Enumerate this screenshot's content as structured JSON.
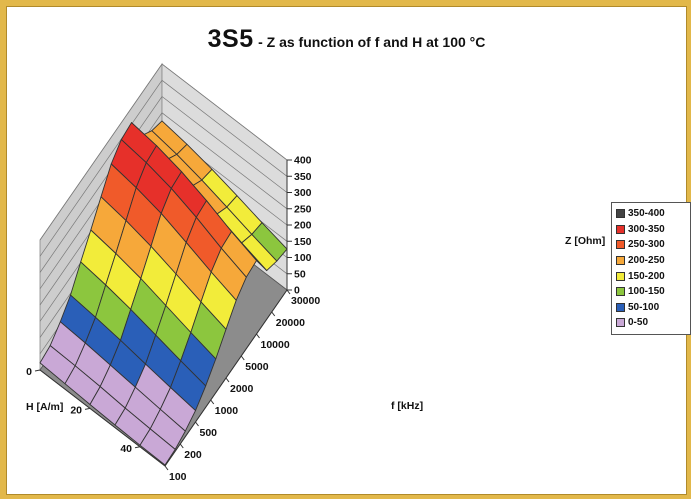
{
  "title": {
    "main": "3S5",
    "sub": "- Z as function of f and H at 100 °C"
  },
  "chart_data": {
    "type": "surface3d",
    "z_label": "Z [Ohm]",
    "x_label": "f [kHz]",
    "y_label": "H [A/m]",
    "z_ticks": [
      "0",
      "50",
      "100",
      "150",
      "200",
      "250",
      "300",
      "350",
      "400"
    ],
    "zlim": [
      0,
      400
    ],
    "f_ticks": [
      "100",
      "200",
      "500",
      "1000",
      "2000",
      "5000",
      "10000",
      "20000",
      "30000"
    ],
    "h_ticks": [
      "0",
      "20",
      "40"
    ],
    "h_values": [
      0,
      10,
      20,
      30,
      40,
      50
    ],
    "z": [
      [
        22,
        30,
        58,
        95,
        152,
        205,
        262,
        318,
        348,
        355,
        270,
        240,
        225
      ],
      [
        17,
        27,
        52,
        86,
        140,
        192,
        248,
        304,
        336,
        343,
        255,
        226,
        212
      ],
      [
        12,
        22,
        43,
        74,
        124,
        174,
        228,
        284,
        316,
        322,
        232,
        206,
        194
      ],
      [
        8,
        15,
        34,
        60,
        104,
        150,
        202,
        254,
        286,
        292,
        205,
        182,
        172
      ],
      [
        5,
        10,
        25,
        47,
        84,
        126,
        175,
        222,
        250,
        256,
        176,
        157,
        148
      ],
      [
        3,
        6,
        17,
        35,
        66,
        104,
        150,
        194,
        220,
        226,
        150,
        134,
        126
      ]
    ],
    "colors": {
      "wall": "#cdcdcd",
      "floor": "#8c8c8c",
      "grid": "#333333"
    },
    "bands": [
      {
        "label": "350-400",
        "min": 350,
        "color": "#444444"
      },
      {
        "label": "300-350",
        "min": 300,
        "color": "#e6302a"
      },
      {
        "label": "250-300",
        "min": 250,
        "color": "#f05a2a"
      },
      {
        "label": "200-250",
        "min": 200,
        "color": "#f6a83a"
      },
      {
        "label": "150-200",
        "min": 150,
        "color": "#f2ec3a"
      },
      {
        "label": "100-150",
        "min": 100,
        "color": "#8cc63e"
      },
      {
        "label": "50-100",
        "min": 50,
        "color": "#2a5fb8"
      },
      {
        "label": "0-50",
        "min": 0,
        "color": "#c9a8d6"
      }
    ]
  }
}
